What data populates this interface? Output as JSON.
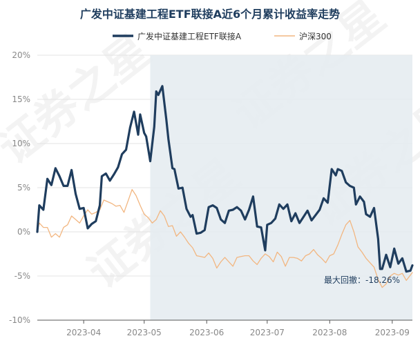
{
  "chart_data": {
    "type": "line",
    "title": "广发中证基建工程ETF联接A近6个月累计收益率走势",
    "legend_position": "top-center",
    "ylim": [
      -10,
      20
    ],
    "yticks": [
      "20%",
      "15%",
      "10%",
      "5%",
      "0%",
      "-5%",
      "-10%"
    ],
    "ytick_values": [
      20,
      15,
      10,
      5,
      0,
      -5,
      -10
    ],
    "xlim": [
      "2023-03-09",
      "2023-09-11"
    ],
    "xticks": [
      "2023-04",
      "2023-05",
      "2023-06",
      "2023-07",
      "2023-08",
      "2023-09"
    ],
    "xtick_dates": [
      "2023-04-01",
      "2023-05-01",
      "2023-06-01",
      "2023-07-01",
      "2023-08-01",
      "2023-09-01"
    ],
    "grid": true,
    "shaded_region": [
      "2023-05-04",
      "2023-09-11"
    ],
    "annotation": "最大回撤：-18.26%",
    "watermark": "证券之星",
    "series": [
      {
        "name": "广发中证基建工程ETF联接A",
        "color": "#1f3d5e",
        "points": [
          [
            "2023-03-09",
            0.0
          ],
          [
            "2023-03-10",
            3.0
          ],
          [
            "2023-03-12",
            2.5
          ],
          [
            "2023-03-14",
            6.0
          ],
          [
            "2023-03-16",
            5.3
          ],
          [
            "2023-03-18",
            7.2
          ],
          [
            "2023-03-20",
            6.3
          ],
          [
            "2023-03-22",
            5.2
          ],
          [
            "2023-03-24",
            5.2
          ],
          [
            "2023-03-26",
            7.0
          ],
          [
            "2023-03-28",
            4.3
          ],
          [
            "2023-03-30",
            2.6
          ],
          [
            "2023-04-01",
            2.7
          ],
          [
            "2023-04-03",
            0.4
          ],
          [
            "2023-04-05",
            0.9
          ],
          [
            "2023-04-07",
            1.2
          ],
          [
            "2023-04-09",
            3.0
          ],
          [
            "2023-04-10",
            6.3
          ],
          [
            "2023-04-12",
            6.6
          ],
          [
            "2023-04-14",
            5.8
          ],
          [
            "2023-04-16",
            6.5
          ],
          [
            "2023-04-18",
            7.3
          ],
          [
            "2023-04-20",
            8.8
          ],
          [
            "2023-04-22",
            9.3
          ],
          [
            "2023-04-24",
            11.8
          ],
          [
            "2023-04-26",
            13.6
          ],
          [
            "2023-04-28",
            11.0
          ],
          [
            "2023-04-29",
            13.3
          ],
          [
            "2023-05-01",
            11.2
          ],
          [
            "2023-05-02",
            10.8
          ],
          [
            "2023-05-04",
            8.0
          ],
          [
            "2023-05-06",
            11.9
          ],
          [
            "2023-05-07",
            15.9
          ],
          [
            "2023-05-08",
            15.5
          ],
          [
            "2023-05-10",
            16.5
          ],
          [
            "2023-05-12",
            12.7
          ],
          [
            "2023-05-13",
            10.5
          ],
          [
            "2023-05-15",
            7.2
          ],
          [
            "2023-05-16",
            7.1
          ],
          [
            "2023-05-18",
            4.9
          ],
          [
            "2023-05-20",
            5.0
          ],
          [
            "2023-05-22",
            2.6
          ],
          [
            "2023-05-24",
            1.7
          ],
          [
            "2023-05-25",
            1.9
          ],
          [
            "2023-05-27",
            -0.2
          ],
          [
            "2023-05-29",
            -0.1
          ],
          [
            "2023-05-31",
            0.2
          ],
          [
            "2023-06-02",
            2.8
          ],
          [
            "2023-06-04",
            3.0
          ],
          [
            "2023-06-06",
            2.7
          ],
          [
            "2023-06-08",
            1.4
          ],
          [
            "2023-06-10",
            1.0
          ],
          [
            "2023-06-12",
            2.4
          ],
          [
            "2023-06-14",
            2.5
          ],
          [
            "2023-06-16",
            2.8
          ],
          [
            "2023-06-18",
            2.4
          ],
          [
            "2023-06-20",
            1.4
          ],
          [
            "2023-06-22",
            2.5
          ],
          [
            "2023-06-24",
            4.0
          ],
          [
            "2023-06-26",
            0.6
          ],
          [
            "2023-06-28",
            0.5
          ],
          [
            "2023-06-30",
            -2.1
          ],
          [
            "2023-07-01",
            0.8
          ],
          [
            "2023-07-03",
            1.0
          ],
          [
            "2023-07-05",
            1.5
          ],
          [
            "2023-07-07",
            3.1
          ],
          [
            "2023-07-09",
            2.6
          ],
          [
            "2023-07-11",
            3.1
          ],
          [
            "2023-07-13",
            1.2
          ],
          [
            "2023-07-15",
            2.1
          ],
          [
            "2023-07-17",
            1.0
          ],
          [
            "2023-07-19",
            1.7
          ],
          [
            "2023-07-21",
            2.4
          ],
          [
            "2023-07-23",
            1.3
          ],
          [
            "2023-07-25",
            1.9
          ],
          [
            "2023-07-27",
            2.5
          ],
          [
            "2023-07-29",
            3.8
          ],
          [
            "2023-07-31",
            3.3
          ],
          [
            "2023-08-02",
            7.1
          ],
          [
            "2023-08-04",
            6.4
          ],
          [
            "2023-08-05",
            7.1
          ],
          [
            "2023-08-07",
            6.9
          ],
          [
            "2023-08-09",
            5.6
          ],
          [
            "2023-08-11",
            5.2
          ],
          [
            "2023-08-13",
            5.0
          ],
          [
            "2023-08-14",
            3.1
          ],
          [
            "2023-08-16",
            4.0
          ],
          [
            "2023-08-18",
            3.4
          ],
          [
            "2023-08-19",
            2.0
          ],
          [
            "2023-08-21",
            1.7
          ],
          [
            "2023-08-23",
            2.7
          ],
          [
            "2023-08-25",
            -0.8
          ],
          [
            "2023-08-26",
            -4.2
          ],
          [
            "2023-08-27",
            -4.2
          ],
          [
            "2023-08-29",
            -2.6
          ],
          [
            "2023-08-31",
            -4.0
          ],
          [
            "2023-09-02",
            -1.9
          ],
          [
            "2023-09-04",
            -3.6
          ],
          [
            "2023-09-06",
            -3.0
          ],
          [
            "2023-09-08",
            -4.5
          ],
          [
            "2023-09-10",
            -4.4
          ],
          [
            "2023-09-11",
            -3.8
          ]
        ]
      },
      {
        "name": "沪深300",
        "color": "#f2b680",
        "points": [
          [
            "2023-03-09",
            0.0
          ],
          [
            "2023-03-10",
            1.0
          ],
          [
            "2023-03-12",
            0.5
          ],
          [
            "2023-03-14",
            0.5
          ],
          [
            "2023-03-16",
            -0.6
          ],
          [
            "2023-03-18",
            -0.2
          ],
          [
            "2023-03-20",
            -0.6
          ],
          [
            "2023-03-22",
            0.5
          ],
          [
            "2023-03-24",
            0.8
          ],
          [
            "2023-03-26",
            1.8
          ],
          [
            "2023-03-28",
            1.4
          ],
          [
            "2023-03-30",
            1.0
          ],
          [
            "2023-04-01",
            1.8
          ],
          [
            "2023-04-03",
            2.5
          ],
          [
            "2023-04-05",
            2.0
          ],
          [
            "2023-04-07",
            2.2
          ],
          [
            "2023-04-09",
            2.5
          ],
          [
            "2023-04-11",
            3.6
          ],
          [
            "2023-04-13",
            3.4
          ],
          [
            "2023-04-15",
            3.2
          ],
          [
            "2023-04-17",
            2.9
          ],
          [
            "2023-04-19",
            3.0
          ],
          [
            "2023-04-21",
            2.2
          ],
          [
            "2023-04-23",
            3.5
          ],
          [
            "2023-04-25",
            4.8
          ],
          [
            "2023-04-27",
            4.1
          ],
          [
            "2023-04-29",
            3.0
          ],
          [
            "2023-05-01",
            2.0
          ],
          [
            "2023-05-03",
            1.6
          ],
          [
            "2023-05-05",
            1.0
          ],
          [
            "2023-05-07",
            1.4
          ],
          [
            "2023-05-09",
            2.4
          ],
          [
            "2023-05-11",
            1.8
          ],
          [
            "2023-05-13",
            0.6
          ],
          [
            "2023-05-15",
            0.7
          ],
          [
            "2023-05-17",
            -0.5
          ],
          [
            "2023-05-19",
            0.0
          ],
          [
            "2023-05-21",
            -0.6
          ],
          [
            "2023-05-23",
            -1.3
          ],
          [
            "2023-05-25",
            -1.8
          ],
          [
            "2023-05-27",
            -2.7
          ],
          [
            "2023-05-29",
            -2.8
          ],
          [
            "2023-05-31",
            -2.9
          ],
          [
            "2023-06-02",
            -2.4
          ],
          [
            "2023-06-04",
            -3.0
          ],
          [
            "2023-06-06",
            -4.1
          ],
          [
            "2023-06-08",
            -3.4
          ],
          [
            "2023-06-10",
            -2.9
          ],
          [
            "2023-06-12",
            -3.4
          ],
          [
            "2023-06-14",
            -3.9
          ],
          [
            "2023-06-16",
            -2.9
          ],
          [
            "2023-06-18",
            -2.8
          ],
          [
            "2023-06-20",
            -2.7
          ],
          [
            "2023-06-22",
            -2.7
          ],
          [
            "2023-06-24",
            -3.3
          ],
          [
            "2023-06-26",
            -3.7
          ],
          [
            "2023-06-28",
            -3.0
          ],
          [
            "2023-06-30",
            -2.5
          ],
          [
            "2023-07-02",
            -2.8
          ],
          [
            "2023-07-04",
            -3.4
          ],
          [
            "2023-07-06",
            -2.3
          ],
          [
            "2023-07-08",
            -2.8
          ],
          [
            "2023-07-10",
            -3.9
          ],
          [
            "2023-07-12",
            -2.9
          ],
          [
            "2023-07-14",
            -2.9
          ],
          [
            "2023-07-16",
            -3.0
          ],
          [
            "2023-07-18",
            -3.3
          ],
          [
            "2023-07-20",
            -2.7
          ],
          [
            "2023-07-22",
            -2.5
          ],
          [
            "2023-07-24",
            -2.0
          ],
          [
            "2023-07-26",
            -2.6
          ],
          [
            "2023-07-28",
            -3.0
          ],
          [
            "2023-07-30",
            -3.5
          ],
          [
            "2023-08-01",
            -2.7
          ],
          [
            "2023-08-03",
            -2.5
          ],
          [
            "2023-08-05",
            -1.5
          ],
          [
            "2023-08-07",
            -0.3
          ],
          [
            "2023-08-09",
            0.8
          ],
          [
            "2023-08-11",
            1.3
          ],
          [
            "2023-08-13",
            0.0
          ],
          [
            "2023-08-15",
            -1.7
          ],
          [
            "2023-08-17",
            -2.3
          ],
          [
            "2023-08-19",
            -3.0
          ],
          [
            "2023-08-21",
            -3.5
          ],
          [
            "2023-08-23",
            -4.0
          ],
          [
            "2023-08-25",
            -5.4
          ],
          [
            "2023-08-27",
            -6.3
          ],
          [
            "2023-08-29",
            -5.9
          ],
          [
            "2023-08-31",
            -5.0
          ],
          [
            "2023-09-02",
            -4.7
          ],
          [
            "2023-09-04",
            -4.9
          ],
          [
            "2023-09-06",
            -4.7
          ],
          [
            "2023-09-08",
            -5.5
          ],
          [
            "2023-09-10",
            -4.9
          ],
          [
            "2023-09-11",
            -4.6
          ]
        ]
      }
    ]
  }
}
